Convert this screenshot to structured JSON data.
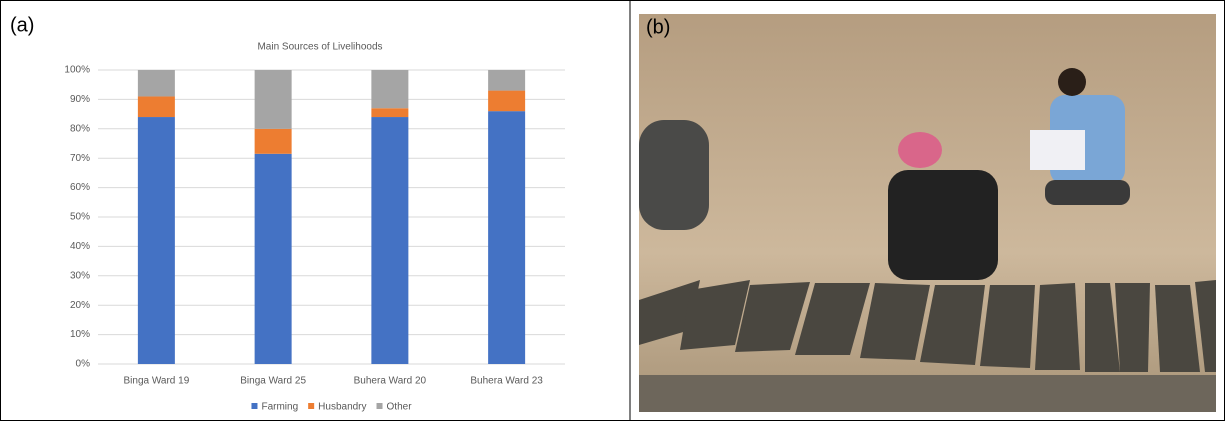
{
  "panel_labels": [
    "(a)",
    "(b)"
  ],
  "chart_data": {
    "type": "stacked-bar",
    "title": "Main Sources of Livelihoods",
    "categories": [
      "Binga Ward 19",
      "Binga Ward 25",
      "Buhera Ward 20",
      "Buhera Ward 23"
    ],
    "series": [
      {
        "name": "Farming",
        "color": "#4472c4",
        "values": [
          84,
          71.5,
          84,
          86
        ]
      },
      {
        "name": "Husbandry",
        "color": "#ed7d31",
        "values": [
          7,
          8.5,
          3,
          7
        ]
      },
      {
        "name": "Other",
        "color": "#a5a5a5",
        "values": [
          9,
          20,
          13,
          7
        ]
      }
    ],
    "ylim": [
      0,
      100
    ],
    "yticks": [
      {
        "value": 0,
        "label": "0%"
      },
      {
        "value": 10,
        "label": "10%"
      },
      {
        "value": 20,
        "label": "20%"
      },
      {
        "value": 30,
        "label": "30%"
      },
      {
        "value": 40,
        "label": "40%"
      },
      {
        "value": 50,
        "label": "50%"
      },
      {
        "value": 60,
        "label": "60%"
      },
      {
        "value": 70,
        "label": "70%"
      },
      {
        "value": 80,
        "label": "80%"
      },
      {
        "value": 90,
        "label": "90%"
      },
      {
        "value": 100,
        "label": "100%"
      }
    ],
    "grid": true,
    "legend": "bottom"
  }
}
